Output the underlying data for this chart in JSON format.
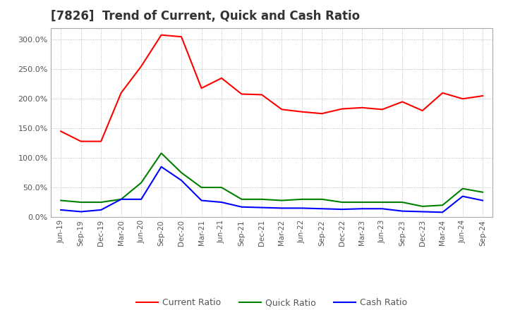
{
  "title": "[7826]  Trend of Current, Quick and Cash Ratio",
  "x_labels": [
    "Jun-19",
    "Sep-19",
    "Dec-19",
    "Mar-20",
    "Jun-20",
    "Sep-20",
    "Dec-20",
    "Mar-21",
    "Jun-21",
    "Sep-21",
    "Dec-21",
    "Mar-22",
    "Jun-22",
    "Sep-22",
    "Dec-22",
    "Mar-23",
    "Jun-23",
    "Sep-23",
    "Dec-23",
    "Mar-24",
    "Jun-24",
    "Sep-24"
  ],
  "current_ratio": [
    145,
    128,
    128,
    210,
    255,
    308,
    305,
    218,
    235,
    208,
    207,
    182,
    178,
    175,
    183,
    185,
    182,
    195,
    180,
    210,
    200,
    205
  ],
  "quick_ratio": [
    28,
    25,
    25,
    30,
    58,
    108,
    75,
    50,
    50,
    30,
    30,
    28,
    30,
    30,
    25,
    25,
    25,
    25,
    18,
    20,
    48,
    42
  ],
  "cash_ratio": [
    12,
    9,
    12,
    30,
    30,
    85,
    62,
    28,
    25,
    17,
    16,
    15,
    15,
    14,
    13,
    14,
    14,
    10,
    9,
    8,
    35,
    28
  ],
  "current_color": "#ff0000",
  "quick_color": "#008000",
  "cash_color": "#0000ff",
  "ylim": [
    0,
    320
  ],
  "yticks": [
    0,
    50,
    100,
    150,
    200,
    250,
    300
  ],
  "background_color": "#ffffff",
  "grid_color": "#aaaaaa",
  "title_fontsize": 12,
  "title_color": "#333333",
  "tick_color": "#555555",
  "legend_labels": [
    "Current Ratio",
    "Quick Ratio",
    "Cash Ratio"
  ]
}
